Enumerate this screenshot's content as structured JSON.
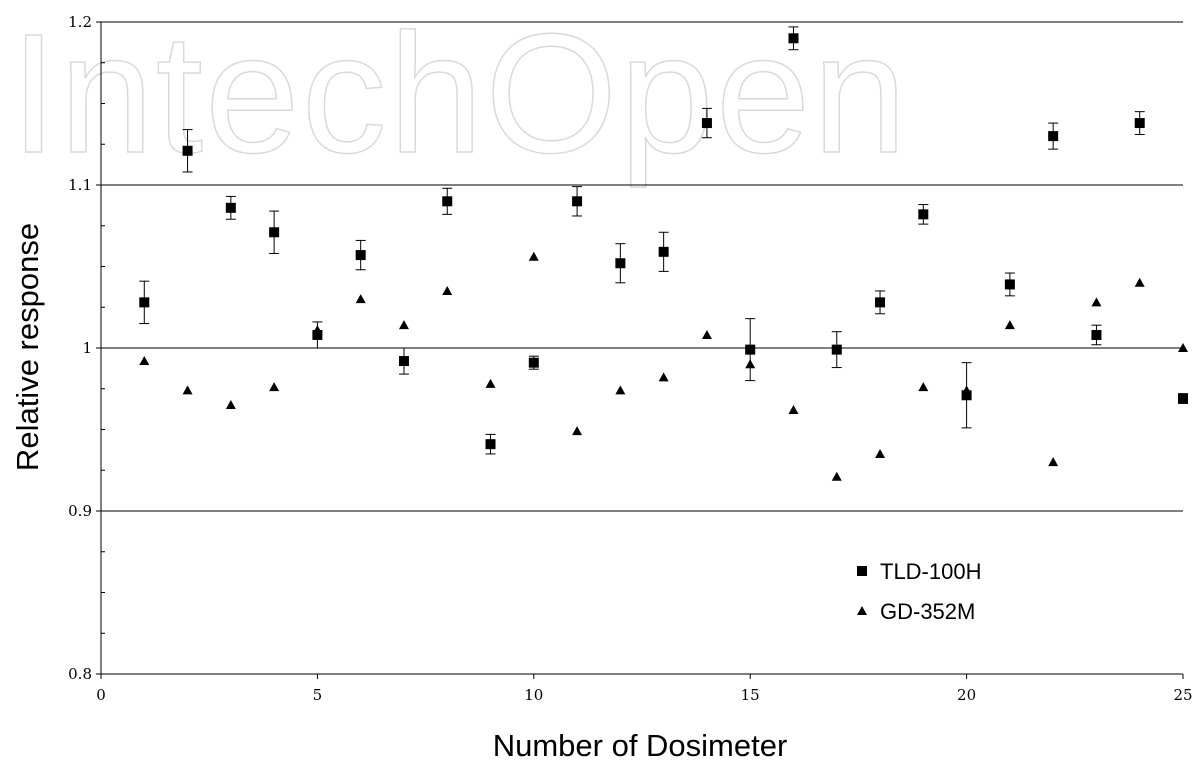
{
  "watermark": "IntechOpen",
  "chart_data": {
    "type": "scatter",
    "xlabel": "Number of Dosimeter",
    "ylabel": "Relative response",
    "xlim": [
      0,
      25
    ],
    "ylim": [
      0.8,
      1.2
    ],
    "x_ticks": [
      0,
      5,
      10,
      15,
      20,
      25
    ],
    "y_ticks": [
      0.8,
      0.9,
      1,
      1.1,
      1.2
    ],
    "x_tick_labels": [
      "0",
      "5",
      "10",
      "15",
      "20",
      "25"
    ],
    "y_tick_labels": [
      "0.8",
      "0.9",
      "1",
      "1.1",
      "1.2"
    ],
    "reference_lines": [
      0.9,
      1.0,
      1.1,
      1.2
    ],
    "legend_position": "bottom-right",
    "series": [
      {
        "name": "TLD-100H",
        "marker": "square",
        "x": [
          1,
          2,
          3,
          4,
          5,
          6,
          7,
          8,
          9,
          10,
          11,
          12,
          13,
          14,
          15,
          16,
          17,
          18,
          19,
          20,
          21,
          22,
          23,
          24,
          25
        ],
        "y": [
          1.028,
          1.121,
          1.086,
          1.071,
          1.008,
          1.057,
          0.992,
          1.09,
          0.941,
          0.991,
          1.09,
          1.052,
          1.059,
          1.138,
          0.999,
          1.19,
          0.999,
          1.028,
          1.082,
          0.971,
          1.039,
          1.13,
          1.008,
          1.138,
          0.969
        ],
        "err": [
          0.013,
          0.013,
          0.007,
          0.013,
          0.008,
          0.009,
          0.008,
          0.008,
          0.006,
          0.004,
          0.009,
          0.012,
          0.012,
          0.009,
          0.019,
          0.007,
          0.011,
          0.007,
          0.006,
          0.02,
          0.007,
          0.008,
          0.006,
          0.007,
          0.003
        ]
      },
      {
        "name": "GD-352M",
        "marker": "triangle",
        "x": [
          1,
          2,
          3,
          4,
          5,
          6,
          7,
          8,
          9,
          10,
          11,
          12,
          13,
          14,
          15,
          16,
          17,
          18,
          19,
          20,
          21,
          22,
          23,
          24,
          25
        ],
        "y": [
          0.992,
          0.974,
          0.965,
          0.976,
          1.011,
          1.03,
          1.014,
          1.035,
          0.978,
          1.056,
          0.949,
          0.974,
          0.982,
          1.008,
          0.99,
          0.962,
          0.921,
          0.935,
          0.976,
          0.974,
          1.014,
          0.93,
          1.028,
          1.04,
          1.0
        ]
      }
    ]
  }
}
